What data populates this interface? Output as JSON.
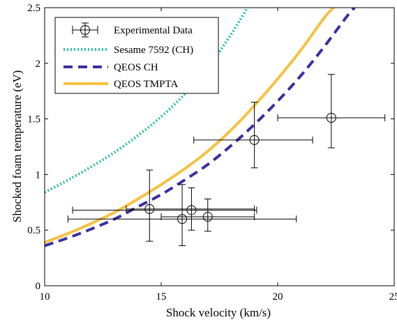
{
  "chart_data": {
    "type": "scatter",
    "xlabel": "Shock velocity (km/s)",
    "ylabel": "Shocked foam temperature (eV)",
    "xlim": [
      10,
      25
    ],
    "ylim": [
      0,
      2.5
    ],
    "x_ticks": [
      10,
      15,
      20,
      25
    ],
    "x_tick_labels": [
      "10",
      "15",
      "20",
      "25"
    ],
    "y_ticks": [
      0,
      0.5,
      1,
      1.5,
      2,
      2.5
    ],
    "y_tick_labels": [
      "0",
      "0.5",
      "1",
      "1.5",
      "2",
      "2.5"
    ],
    "grid": false,
    "legend_position": "top-left",
    "series": [
      {
        "name": "Experimental Data",
        "kind": "errorbar",
        "color": "#000000",
        "points": [
          {
            "x": 14.5,
            "y": 0.69,
            "xerr_low": 13.5,
            "xerr_high": 19.0,
            "yerr_low": 0.4,
            "yerr_high": 1.04
          },
          {
            "x": 15.9,
            "y": 0.6,
            "xerr_low": 11.0,
            "xerr_high": 20.8,
            "yerr_low": 0.36,
            "yerr_high": 0.91
          },
          {
            "x": 16.3,
            "y": 0.68,
            "xerr_low": 11.2,
            "xerr_high": 19.1,
            "yerr_low": 0.5,
            "yerr_high": 0.88
          },
          {
            "x": 17.0,
            "y": 0.62,
            "xerr_low": 15.0,
            "xerr_high": 19.0,
            "yerr_low": 0.49,
            "yerr_high": 0.78
          },
          {
            "x": 19.0,
            "y": 1.31,
            "xerr_low": 16.4,
            "xerr_high": 21.5,
            "yerr_low": 1.06,
            "yerr_high": 1.65
          },
          {
            "x": 22.3,
            "y": 1.51,
            "xerr_low": 20.0,
            "xerr_high": 24.6,
            "yerr_low": 1.24,
            "yerr_high": 1.9
          }
        ]
      },
      {
        "name": "Sesame 7592 (CH)",
        "kind": "line",
        "color": "#2bbfa8",
        "style": "dotted",
        "x": [
          10,
          11,
          12,
          13,
          14,
          15,
          16,
          17,
          18,
          18.7
        ],
        "y": [
          0.84,
          0.95,
          1.07,
          1.2,
          1.35,
          1.52,
          1.72,
          1.96,
          2.26,
          2.5
        ]
      },
      {
        "name": "QEOS CH",
        "kind": "line",
        "color": "#3a2ea0",
        "style": "dashed",
        "x": [
          10,
          11,
          12,
          13,
          14,
          15,
          16,
          17,
          18,
          19,
          20,
          21,
          22,
          23,
          23.3
        ],
        "y": [
          0.36,
          0.43,
          0.51,
          0.6,
          0.71,
          0.82,
          0.95,
          1.09,
          1.26,
          1.45,
          1.66,
          1.89,
          2.15,
          2.43,
          2.5
        ]
      },
      {
        "name": "QEOS TMPTA",
        "kind": "line",
        "color": "#f5c242",
        "style": "solid",
        "x": [
          10,
          11,
          12,
          13,
          14,
          15,
          16,
          17,
          18,
          19,
          20,
          21,
          22,
          22.4
        ],
        "y": [
          0.39,
          0.47,
          0.56,
          0.66,
          0.78,
          0.91,
          1.05,
          1.21,
          1.4,
          1.62,
          1.86,
          2.12,
          2.41,
          2.5
        ]
      }
    ]
  }
}
